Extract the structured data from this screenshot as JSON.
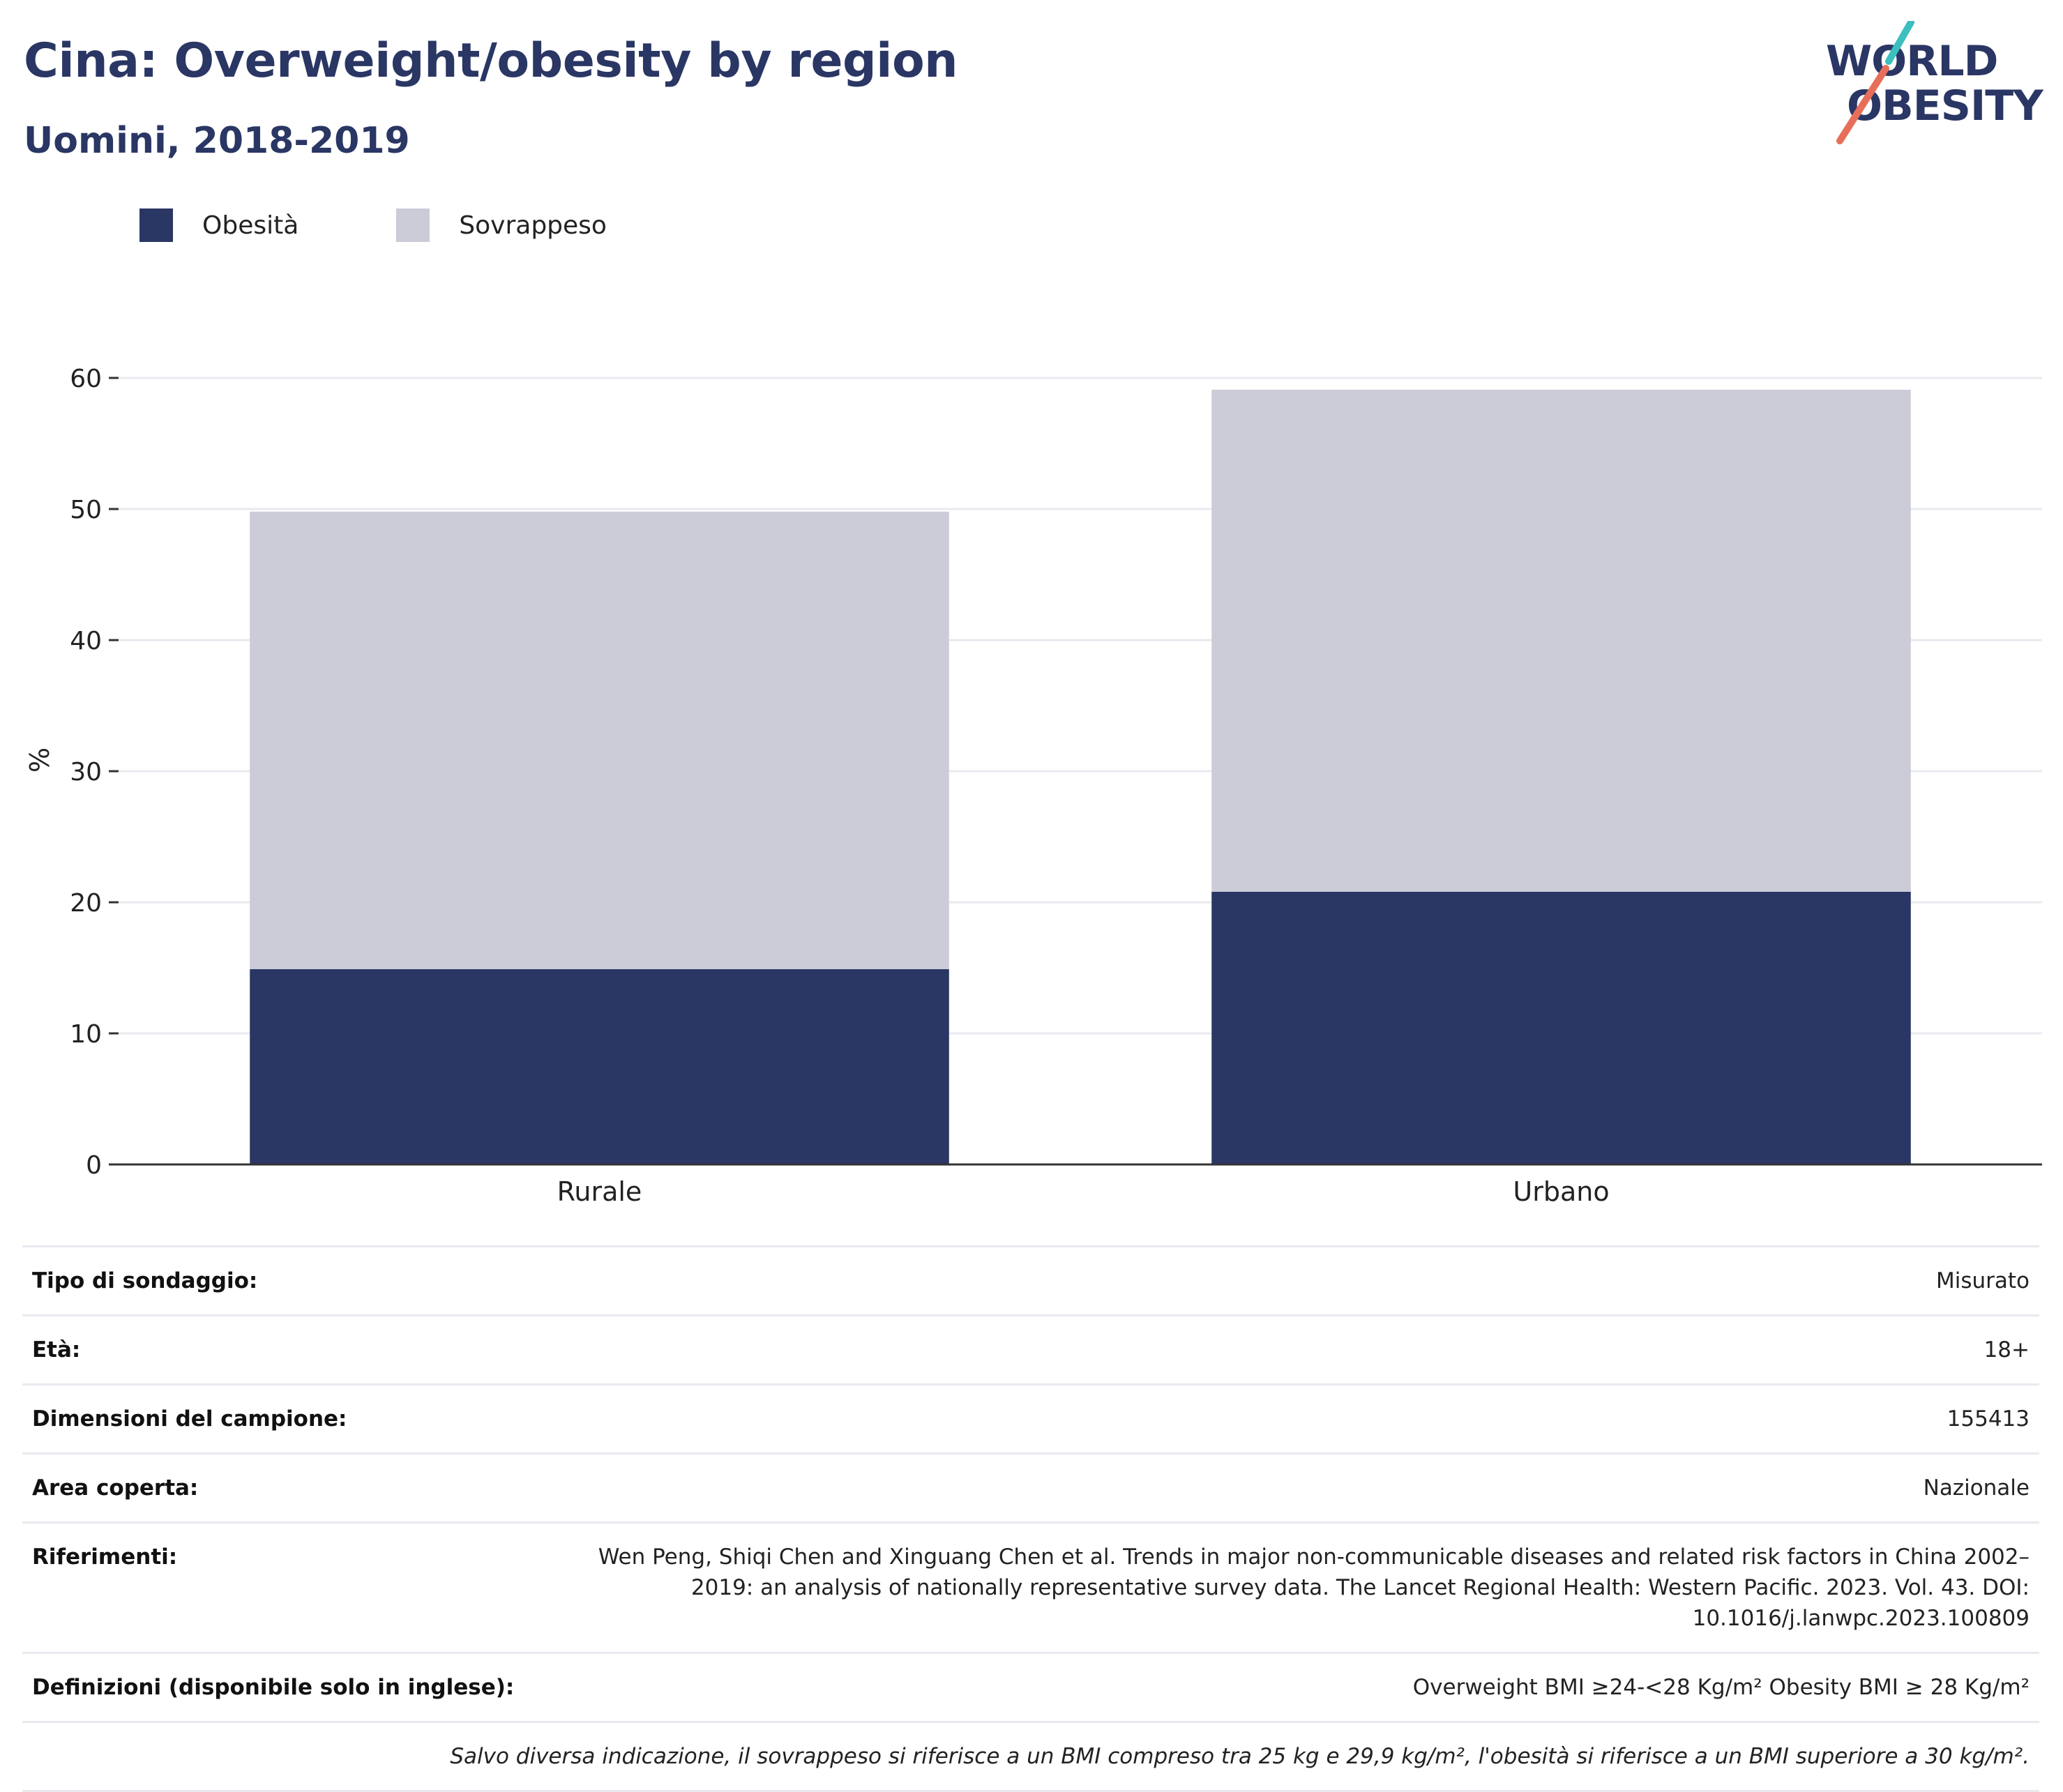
{
  "header": {
    "title": "Cina: Overweight/obesity by region",
    "subtitle": "Uomini, 2018-2019"
  },
  "logo": {
    "line1": "WORLD",
    "line2": "OBESITY",
    "accent_colors": [
      "#3bbfbf",
      "#e76f5a"
    ]
  },
  "colors": {
    "obesity": "#2a3664",
    "overweight": "#cbccd8",
    "grid": "#e8eaf0",
    "axis": "#333333"
  },
  "chart_data": {
    "type": "bar",
    "stacked": true,
    "categories": [
      "Rurale",
      "Urbano"
    ],
    "series": [
      {
        "name": "Obesità",
        "values": [
          14.9,
          20.8
        ]
      },
      {
        "name": "Sovrappeso",
        "values": [
          34.9,
          38.3
        ]
      }
    ],
    "ylabel": "%",
    "xlabel": "",
    "ylim": [
      0,
      60
    ],
    "yticks": [
      0,
      10,
      20,
      30,
      40,
      50,
      60
    ],
    "grid": true,
    "legend": "top-left"
  },
  "legend": [
    {
      "label": "Obesità",
      "color": "#2a3664"
    },
    {
      "label": "Sovrappeso",
      "color": "#cbccd8"
    }
  ],
  "meta": {
    "survey_type": {
      "label": "Tipo di sondaggio:",
      "value": "Misurato"
    },
    "age": {
      "label": "Età:",
      "value": "18+"
    },
    "sample": {
      "label": "Dimensioni del campione:",
      "value": "155413"
    },
    "area": {
      "label": "Area coperta:",
      "value": "Nazionale"
    },
    "references": {
      "label": "Riferimenti:",
      "value": "Wen Peng, Shiqi Chen and Xinguang Chen et al. Trends in major non-communicable diseases and related risk factors in China 2002–2019: an analysis of nationally representative survey data. The Lancet Regional Health: Western Pacific. 2023. Vol. 43. DOI: 10.1016/j.lanwpc.2023.100809"
    },
    "definitions": {
      "label": "Definizioni (disponibile solo in inglese):",
      "value": "Overweight BMI ≥24-<28 Kg/m² Obesity BMI ≥ 28 Kg/m²"
    },
    "note": "Salvo diversa indicazione, il sovrappeso si riferisce a un BMI compreso tra 25 kg e 29,9 kg/m², l'obesità si riferisce a un BMI superiore a 30 kg/m²."
  }
}
